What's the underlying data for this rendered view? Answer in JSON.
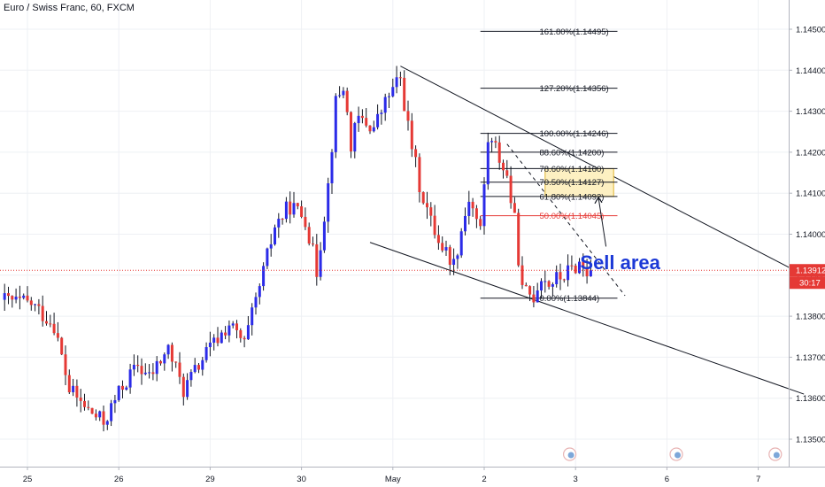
{
  "chart_data": {
    "type": "candlestick",
    "title": "Euro / Swiss Franc, 60, FXCM",
    "ylim": [
      1.1345,
      1.1455
    ],
    "y_ticks": [
      "1.14500",
      "1.14400",
      "1.14300",
      "1.14200",
      "1.14100",
      "1.14000",
      "1.13900",
      "1.13800",
      "1.13700",
      "1.13600",
      "1.13500"
    ],
    "y_tick_values": [
      1.145,
      1.144,
      1.143,
      1.142,
      1.141,
      1.14,
      1.139,
      1.138,
      1.137,
      1.136,
      1.135
    ],
    "x_ticks": [
      {
        "label": "25",
        "t": 0
      },
      {
        "label": "26",
        "t": 24
      },
      {
        "label": "29",
        "t": 48
      },
      {
        "label": "30",
        "t": 72
      },
      {
        "label": "May",
        "t": 96
      },
      {
        "label": "2",
        "t": 120
      },
      {
        "label": "3",
        "t": 144
      },
      {
        "label": "6",
        "t": 168
      },
      {
        "label": "7",
        "t": 192
      }
    ],
    "x_range": [
      -6,
      204
    ],
    "grid": true,
    "current_price": {
      "value": 1.13912,
      "label": "1.13912",
      "countdown": "30:17"
    },
    "anchors": [
      {
        "t": -6,
        "v": 1.1384
      },
      {
        "t": 2,
        "v": 1.1383
      },
      {
        "t": 8,
        "v": 1.1378
      },
      {
        "t": 12,
        "v": 1.1362
      },
      {
        "t": 17,
        "v": 1.1357
      },
      {
        "t": 21,
        "v": 1.1354
      },
      {
        "t": 26,
        "v": 1.1363
      },
      {
        "t": 30,
        "v": 1.1368
      },
      {
        "t": 33,
        "v": 1.1365
      },
      {
        "t": 38,
        "v": 1.1372
      },
      {
        "t": 42,
        "v": 1.1362
      },
      {
        "t": 48,
        "v": 1.1371
      },
      {
        "t": 54,
        "v": 1.1378
      },
      {
        "t": 58,
        "v": 1.1373
      },
      {
        "t": 62,
        "v": 1.1387
      },
      {
        "t": 66,
        "v": 1.1402
      },
      {
        "t": 70,
        "v": 1.1407
      },
      {
        "t": 74,
        "v": 1.1404
      },
      {
        "t": 77,
        "v": 1.1391
      },
      {
        "t": 80,
        "v": 1.1412
      },
      {
        "t": 82,
        "v": 1.1432
      },
      {
        "t": 84,
        "v": 1.1436
      },
      {
        "t": 86,
        "v": 1.1422
      },
      {
        "t": 88,
        "v": 1.1428
      },
      {
        "t": 92,
        "v": 1.1426
      },
      {
        "t": 96,
        "v": 1.1434
      },
      {
        "t": 99,
        "v": 1.1438
      },
      {
        "t": 101,
        "v": 1.1426
      },
      {
        "t": 104,
        "v": 1.1412
      },
      {
        "t": 107,
        "v": 1.1403
      },
      {
        "t": 110,
        "v": 1.1397
      },
      {
        "t": 113,
        "v": 1.1393
      },
      {
        "t": 117,
        "v": 1.1409
      },
      {
        "t": 120,
        "v": 1.1401
      },
      {
        "t": 122,
        "v": 1.1423
      },
      {
        "t": 124,
        "v": 1.1421
      },
      {
        "t": 127,
        "v": 1.1414
      },
      {
        "t": 129,
        "v": 1.1403
      },
      {
        "t": 131,
        "v": 1.1386
      },
      {
        "t": 134,
        "v": 1.1385
      },
      {
        "t": 136,
        "v": 1.139
      },
      {
        "t": 138,
        "v": 1.1388
      },
      {
        "t": 142,
        "v": 1.139
      },
      {
        "t": 146,
        "v": 1.1393
      },
      {
        "t": 148,
        "v": 1.1391
      }
    ],
    "channel_upper": [
      {
        "t": 98,
        "v": 1.1441
      },
      {
        "t": 204,
        "v": 1.139
      }
    ],
    "channel_lower": [
      {
        "t": 90,
        "v": 1.1398
      },
      {
        "t": 204,
        "v": 1.1361
      }
    ],
    "projection_line": [
      {
        "t": 126,
        "v": 1.1422
      },
      {
        "t": 157,
        "v": 1.1385
      }
    ],
    "fib_levels": [
      {
        "label": "161.80%(1.14495)",
        "value": 1.14495,
        "color": "#131722"
      },
      {
        "label": "127.20%(1.14356)",
        "value": 1.14356,
        "color": "#131722"
      },
      {
        "label": "100.00%(1.14246)",
        "value": 1.14246,
        "color": "#131722"
      },
      {
        "label": "88.60%(1.14200)",
        "value": 1.142,
        "color": "#131722"
      },
      {
        "label": "78.60%(1.14160)",
        "value": 1.1416,
        "color": "#131722"
      },
      {
        "label": "70.50%(1.14127)",
        "value": 1.14127,
        "color": "#131722"
      },
      {
        "label": "61.80%(1.14092)",
        "value": 1.14092,
        "color": "#131722"
      },
      {
        "label": "50.00%(1.14045)",
        "value": 1.14045,
        "color": "#e53935"
      },
      {
        "label": "0.00%(1.13844)",
        "value": 1.13844,
        "color": "#131722"
      }
    ],
    "fib_t_range": [
      119,
      155
    ],
    "sell_zone": {
      "t": [
        136,
        154
      ],
      "v": [
        1.14092,
        1.1416
      ],
      "fill": "#fdf0c2",
      "stroke": "#e0b530"
    },
    "sell_annotation": {
      "text": "Sell area",
      "t": 148,
      "v": 1.13915,
      "color": "#1c39d6",
      "arrow_from": {
        "t": 152,
        "v": 1.1397
      },
      "arrow_to": {
        "t": 150,
        "v": 1.1409
      }
    },
    "colors": {
      "up": "#2b2be8",
      "down": "#e53935",
      "grid": "#eef0f4",
      "axis_text": "#131722",
      "price_line": "#e53935"
    }
  }
}
